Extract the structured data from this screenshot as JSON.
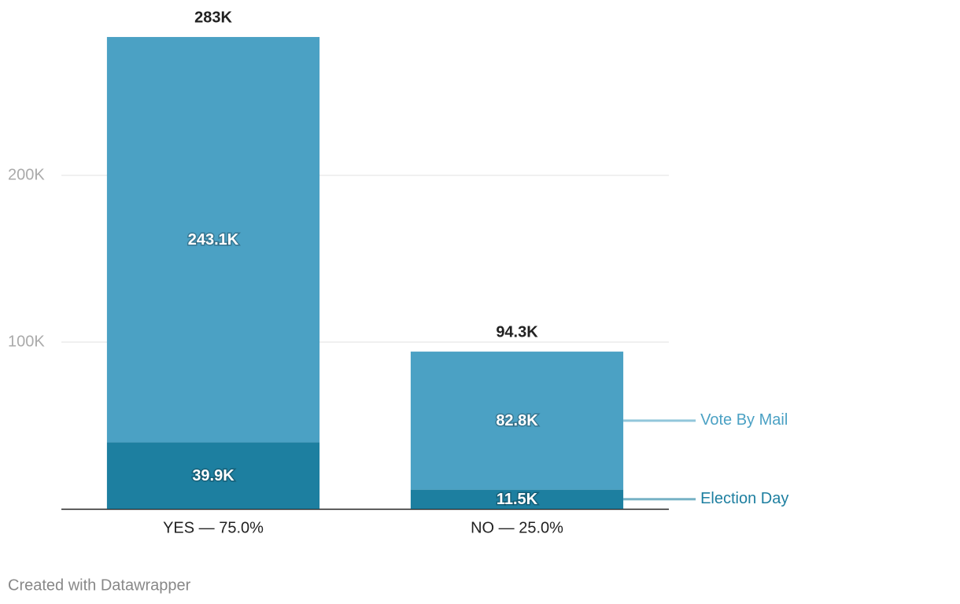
{
  "chart_data": {
    "type": "stacked-bar",
    "categories": [
      "YES — 75.0%",
      "NO — 25.0%"
    ],
    "series": [
      {
        "name": "Election Day",
        "color": "#1d7fa0",
        "values": [
          39900,
          11500
        ],
        "value_labels": [
          "39.9K",
          "11.5K"
        ]
      },
      {
        "name": "Vote By Mail",
        "color": "#4ba1c4",
        "values": [
          243100,
          82800
        ],
        "value_labels": [
          "243.1K",
          "82.8K"
        ]
      }
    ],
    "totals": {
      "values": [
        283000,
        94300
      ],
      "value_labels": [
        "283K",
        "94.3K"
      ]
    },
    "ylim": [
      0,
      300000
    ],
    "yticks": [
      {
        "value": 100000,
        "label": "100K"
      },
      {
        "value": 200000,
        "label": "200K"
      }
    ],
    "grid": true,
    "credit": "Created with Datawrapper"
  }
}
